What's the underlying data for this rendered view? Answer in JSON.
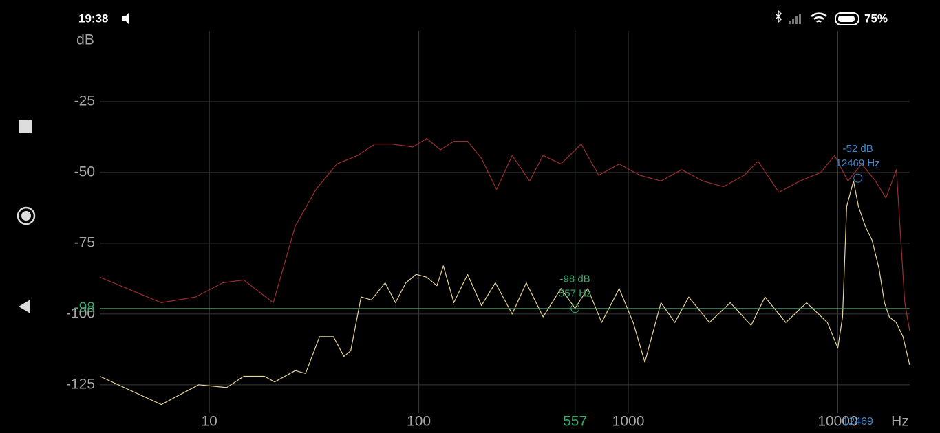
{
  "status_bar": {
    "time": "19:38",
    "battery": "75%"
  },
  "chart_data": {
    "type": "line",
    "x_scale": "log",
    "grid": true,
    "ylabel": "dB",
    "xlabel": "Hz",
    "xlim": [
      3,
      22050
    ],
    "ylim": [
      -135,
      0
    ],
    "xticks": [
      10,
      100,
      1000,
      10000
    ],
    "yticks": [
      -25,
      -50,
      -75,
      -100,
      -125
    ],
    "series": [
      {
        "name": null,
        "color": "#9a2f2f",
        "x": [
          3,
          5.9,
          8.6,
          11.6,
          14.6,
          20.2,
          25.7,
          32.3,
          40.6,
          51,
          61.6,
          74.5,
          93.6,
          109,
          127,
          147,
          171,
          199,
          235,
          279,
          338,
          392,
          477,
          596,
          722,
          905,
          1137,
          1432,
          1798,
          2264,
          2845,
          3577,
          4163,
          5234,
          6588,
          8291,
          9653,
          11180,
          13010,
          15140,
          16970,
          19050,
          19800,
          20880,
          22050
        ],
        "values": [
          -87,
          -96,
          -94,
          -89,
          -88,
          -96,
          -69,
          -56,
          -47,
          -44,
          -40,
          -40,
          -41,
          -38,
          -42,
          -39,
          -39,
          -45,
          -56,
          -44,
          -53,
          -44,
          -47,
          -40,
          -51,
          -47,
          -51,
          -53,
          -49,
          -53,
          -55,
          -51,
          -46,
          -57,
          -53,
          -50,
          -44,
          -53,
          -47,
          -53,
          -59,
          -49,
          -69,
          -96,
          -106
        ]
      },
      {
        "name": null,
        "color": "#e6d49a",
        "x": [
          3,
          5.9,
          8.9,
          12.1,
          14.6,
          18.3,
          20.5,
          25.7,
          28.8,
          33.6,
          39.1,
          43.9,
          47.3,
          53,
          59.4,
          69.1,
          77.4,
          86.7,
          97.2,
          109,
          122,
          131,
          147,
          171,
          199,
          232,
          279,
          326,
          392,
          477,
          557,
          641,
          746,
          905,
          1055,
          1200,
          1432,
          1668,
          1943,
          2441,
          3068,
          3858,
          4492,
          5647,
          7099,
          8925,
          10000,
          10540,
          11030,
          11890,
          12550,
          13530,
          14590,
          15740,
          16710,
          17620,
          19000,
          20480,
          22050
        ],
        "values": [
          -122,
          -132,
          -125,
          -126,
          -122,
          -122,
          -124,
          -120,
          -121,
          -108,
          -108,
          -115,
          -113,
          -94,
          -95,
          -89,
          -96,
          -89,
          -86,
          -87,
          -90,
          -83,
          -96,
          -86,
          -97,
          -89,
          -100,
          -89,
          -101,
          -91,
          -98,
          -91,
          -103,
          -91,
          -103,
          -117,
          -96,
          -103,
          -94,
          -103,
          -96,
          -104,
          -94,
          -103,
          -96,
          -103,
          -112,
          -101,
          -62,
          -53,
          -62,
          -69,
          -74,
          -84,
          -96,
          -101,
          -103,
          -108,
          -118
        ]
      }
    ],
    "cursors": [
      {
        "x": 557,
        "y": -98,
        "color": "#3aa86b",
        "crosshair": true,
        "texts": [
          "-98 dB",
          "557 Hz"
        ]
      },
      {
        "x": 12469,
        "y": -52,
        "color": "#3f86c8",
        "crosshair": false,
        "texts": [
          "-52 dB",
          "12469 Hz"
        ]
      }
    ]
  }
}
